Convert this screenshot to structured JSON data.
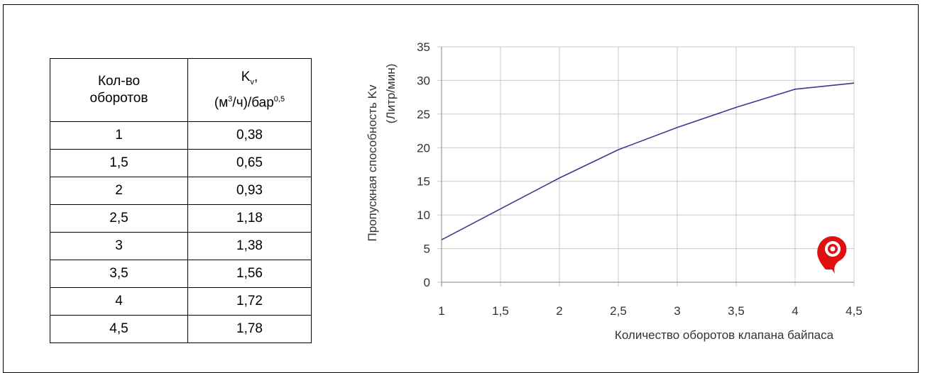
{
  "table": {
    "header_col1_line1": "Кол-во",
    "header_col1_line2": "оборотов",
    "header_col2_k": "K",
    "header_col2_k_sub": "v",
    "header_col2_line1_suffix": ",",
    "header_col2_unit_prefix": "(м",
    "header_col2_unit_sup3": "3",
    "header_col2_unit_mid": "/ч)/бар",
    "header_col2_unit_sup": "0,5",
    "rows": [
      {
        "turns": "1",
        "kv": "0,38"
      },
      {
        "turns": "1,5",
        "kv": "0,65"
      },
      {
        "turns": "2",
        "kv": "0,93"
      },
      {
        "turns": "2,5",
        "kv": "1,18"
      },
      {
        "turns": "3",
        "kv": "1,38"
      },
      {
        "turns": "3,5",
        "kv": "1,56"
      },
      {
        "turns": "4",
        "kv": "1,72"
      },
      {
        "turns": "4,5",
        "kv": "1,78"
      }
    ]
  },
  "chart_data": {
    "type": "line",
    "ylabel_line1": "Пропускная способность Kv",
    "ylabel_line2": "(Литр/мин)",
    "xlabel": "Количество оборотов клапана байпаса",
    "xlim": [
      1,
      4.5
    ],
    "ylim": [
      0,
      35
    ],
    "x_ticks": [
      1,
      1.5,
      2,
      2.5,
      3,
      3.5,
      4,
      4.5
    ],
    "x_tick_labels": [
      "1",
      "1,5",
      "2",
      "2,5",
      "3",
      "3,5",
      "4",
      "4,5"
    ],
    "y_ticks": [
      0,
      5,
      10,
      15,
      20,
      25,
      30,
      35
    ],
    "y_tick_labels": [
      "0",
      "5",
      "10",
      "15",
      "20",
      "25",
      "30",
      "35"
    ],
    "grid": true,
    "series": [
      {
        "x": [
          1,
          1.5,
          2,
          2.5,
          3,
          3.5,
          4,
          4.5
        ],
        "y": [
          6.3,
          10.9,
          15.5,
          19.7,
          23.0,
          26.0,
          28.7,
          29.6
        ]
      }
    ],
    "colors": {
      "line": "#3a3a8c",
      "grid": "#c8c8c8",
      "logo": "#e01010"
    }
  },
  "logo_icon": "valve-logo-icon"
}
